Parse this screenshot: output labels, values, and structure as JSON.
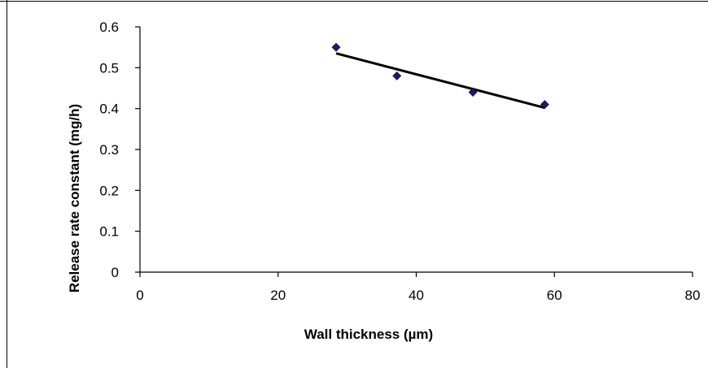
{
  "chart_data": {
    "type": "scatter",
    "title": "",
    "xlabel": "Wall thickness (µm)",
    "ylabel": "Release rate constant (mg/h)",
    "xlim": [
      0,
      80
    ],
    "ylim": [
      0,
      0.6
    ],
    "xticks": [
      0,
      20,
      40,
      60,
      80
    ],
    "yticks": [
      0,
      0.1,
      0.2,
      0.3,
      0.4,
      0.5,
      0.6
    ],
    "x_tick_labels": [
      "0",
      "20",
      "40",
      "60",
      "80"
    ],
    "y_tick_labels": [
      "0",
      "0.1",
      "0.2",
      "0.3",
      "0.4",
      "0.5",
      "0.6"
    ],
    "grid": false,
    "legend": "none",
    "series": [
      {
        "x": [
          28.4,
          37.2,
          48.2,
          58.6
        ],
        "y": [
          0.55,
          0.48,
          0.44,
          0.41
        ],
        "marker": "diamond",
        "color": "#1a1a6e"
      }
    ],
    "trendline": {
      "x": [
        28.4,
        58.6
      ],
      "y": [
        0.535,
        0.402
      ],
      "color": "#000000"
    }
  }
}
